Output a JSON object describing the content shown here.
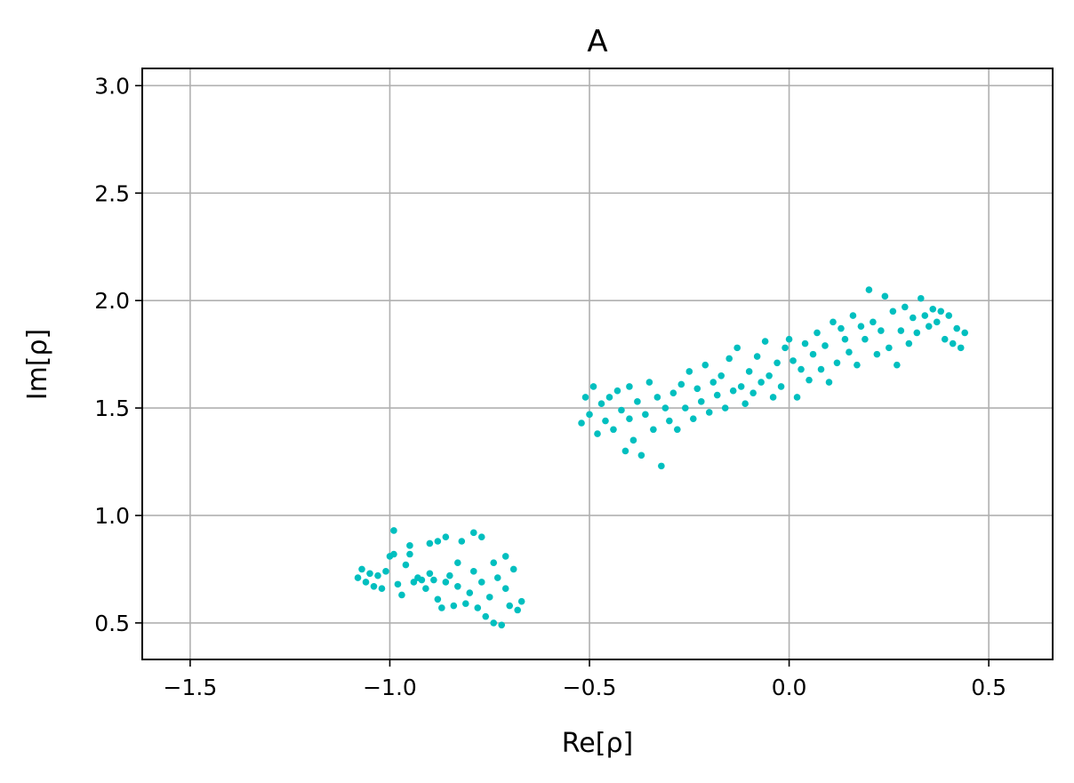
{
  "chart_data": {
    "type": "scatter",
    "title": "A",
    "xlabel": "Re[ρ]",
    "ylabel": "Im[ρ]",
    "xlim": [
      -1.62,
      0.66
    ],
    "ylim": [
      0.33,
      3.08
    ],
    "xticks": [
      -1.5,
      -1.0,
      -0.5,
      0.0,
      0.5
    ],
    "xtick_labels": [
      "−1.5",
      "−1.0",
      "−0.5",
      "0.0",
      "0.5"
    ],
    "yticks": [
      0.5,
      1.0,
      1.5,
      2.0,
      2.5,
      3.0
    ],
    "ytick_labels": [
      "0.5",
      "1.0",
      "1.5",
      "2.0",
      "2.5",
      "3.0"
    ],
    "grid": true,
    "color": "#00bfbf",
    "series": [
      {
        "points": [
          [
            -1.08,
            0.71
          ],
          [
            -1.07,
            0.75
          ],
          [
            -1.06,
            0.69
          ],
          [
            -1.05,
            0.73
          ],
          [
            -1.04,
            0.67
          ],
          [
            -1.03,
            0.72
          ],
          [
            -1.02,
            0.66
          ],
          [
            -1.01,
            0.74
          ],
          [
            -1.0,
            0.81
          ],
          [
            -0.99,
            0.82
          ],
          [
            -0.99,
            0.93
          ],
          [
            -0.98,
            0.68
          ],
          [
            -0.97,
            0.63
          ],
          [
            -0.96,
            0.77
          ],
          [
            -0.95,
            0.86
          ],
          [
            -0.95,
            0.82
          ],
          [
            -0.94,
            0.69
          ],
          [
            -0.93,
            0.71
          ],
          [
            -0.92,
            0.7
          ],
          [
            -0.91,
            0.66
          ],
          [
            -0.9,
            0.87
          ],
          [
            -0.9,
            0.73
          ],
          [
            -0.89,
            0.7
          ],
          [
            -0.88,
            0.88
          ],
          [
            -0.88,
            0.61
          ],
          [
            -0.87,
            0.57
          ],
          [
            -0.86,
            0.9
          ],
          [
            -0.86,
            0.69
          ],
          [
            -0.85,
            0.72
          ],
          [
            -0.84,
            0.58
          ],
          [
            -0.83,
            0.78
          ],
          [
            -0.83,
            0.67
          ],
          [
            -0.82,
            0.88
          ],
          [
            -0.81,
            0.59
          ],
          [
            -0.8,
            0.64
          ],
          [
            -0.79,
            0.92
          ],
          [
            -0.79,
            0.74
          ],
          [
            -0.78,
            0.57
          ],
          [
            -0.77,
            0.9
          ],
          [
            -0.77,
            0.69
          ],
          [
            -0.76,
            0.53
          ],
          [
            -0.75,
            0.62
          ],
          [
            -0.74,
            0.78
          ],
          [
            -0.74,
            0.5
          ],
          [
            -0.73,
            0.71
          ],
          [
            -0.72,
            0.49
          ],
          [
            -0.71,
            0.81
          ],
          [
            -0.71,
            0.66
          ],
          [
            -0.7,
            0.58
          ],
          [
            -0.69,
            0.75
          ],
          [
            -0.68,
            0.56
          ],
          [
            -0.67,
            0.6
          ],
          [
            -0.52,
            1.43
          ],
          [
            -0.51,
            1.55
          ],
          [
            -0.5,
            1.47
          ],
          [
            -0.49,
            1.6
          ],
          [
            -0.48,
            1.38
          ],
          [
            -0.47,
            1.52
          ],
          [
            -0.46,
            1.44
          ],
          [
            -0.45,
            1.55
          ],
          [
            -0.44,
            1.4
          ],
          [
            -0.43,
            1.58
          ],
          [
            -0.42,
            1.49
          ],
          [
            -0.41,
            1.3
          ],
          [
            -0.4,
            1.45
          ],
          [
            -0.4,
            1.6
          ],
          [
            -0.39,
            1.35
          ],
          [
            -0.38,
            1.53
          ],
          [
            -0.37,
            1.28
          ],
          [
            -0.36,
            1.47
          ],
          [
            -0.35,
            1.62
          ],
          [
            -0.34,
            1.4
          ],
          [
            -0.33,
            1.55
          ],
          [
            -0.32,
            1.23
          ],
          [
            -0.31,
            1.5
          ],
          [
            -0.3,
            1.44
          ],
          [
            -0.29,
            1.57
          ],
          [
            -0.28,
            1.4
          ],
          [
            -0.27,
            1.61
          ],
          [
            -0.26,
            1.5
          ],
          [
            -0.25,
            1.67
          ],
          [
            -0.24,
            1.45
          ],
          [
            -0.23,
            1.59
          ],
          [
            -0.22,
            1.53
          ],
          [
            -0.21,
            1.7
          ],
          [
            -0.2,
            1.48
          ],
          [
            -0.19,
            1.62
          ],
          [
            -0.18,
            1.56
          ],
          [
            -0.17,
            1.65
          ],
          [
            -0.16,
            1.5
          ],
          [
            -0.15,
            1.73
          ],
          [
            -0.14,
            1.58
          ],
          [
            -0.13,
            1.78
          ],
          [
            -0.12,
            1.6
          ],
          [
            -0.11,
            1.52
          ],
          [
            -0.1,
            1.67
          ],
          [
            -0.09,
            1.57
          ],
          [
            -0.08,
            1.74
          ],
          [
            -0.07,
            1.62
          ],
          [
            -0.06,
            1.81
          ],
          [
            -0.05,
            1.65
          ],
          [
            -0.04,
            1.55
          ],
          [
            -0.03,
            1.71
          ],
          [
            -0.02,
            1.6
          ],
          [
            -0.01,
            1.78
          ],
          [
            0.0,
            1.82
          ],
          [
            0.01,
            1.72
          ],
          [
            0.02,
            1.55
          ],
          [
            0.03,
            1.68
          ],
          [
            0.04,
            1.8
          ],
          [
            0.05,
            1.63
          ],
          [
            0.06,
            1.75
          ],
          [
            0.07,
            1.85
          ],
          [
            0.08,
            1.68
          ],
          [
            0.09,
            1.79
          ],
          [
            0.1,
            1.62
          ],
          [
            0.11,
            1.9
          ],
          [
            0.12,
            1.71
          ],
          [
            0.13,
            1.87
          ],
          [
            0.14,
            1.82
          ],
          [
            0.15,
            1.76
          ],
          [
            0.16,
            1.93
          ],
          [
            0.17,
            1.7
          ],
          [
            0.18,
            1.88
          ],
          [
            0.19,
            1.82
          ],
          [
            0.2,
            2.05
          ],
          [
            0.21,
            1.9
          ],
          [
            0.22,
            1.75
          ],
          [
            0.23,
            1.86
          ],
          [
            0.24,
            2.02
          ],
          [
            0.25,
            1.78
          ],
          [
            0.26,
            1.95
          ],
          [
            0.27,
            1.7
          ],
          [
            0.28,
            1.86
          ],
          [
            0.29,
            1.97
          ],
          [
            0.3,
            1.8
          ],
          [
            0.31,
            1.92
          ],
          [
            0.32,
            1.85
          ],
          [
            0.33,
            2.01
          ],
          [
            0.34,
            1.93
          ],
          [
            0.35,
            1.88
          ],
          [
            0.36,
            1.96
          ],
          [
            0.37,
            1.9
          ],
          [
            0.38,
            1.95
          ],
          [
            0.39,
            1.82
          ],
          [
            0.4,
            1.93
          ],
          [
            0.41,
            1.8
          ],
          [
            0.42,
            1.87
          ],
          [
            0.43,
            1.78
          ],
          [
            0.44,
            1.85
          ]
        ]
      }
    ]
  }
}
